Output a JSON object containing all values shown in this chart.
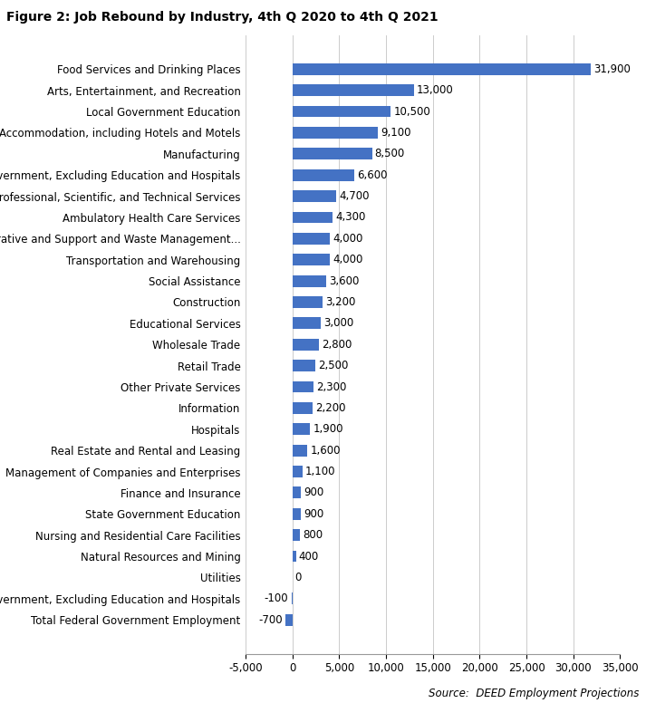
{
  "title": "Figure 2: Job Rebound by Industry, 4th Q 2020 to 4th Q 2021",
  "source": "Source:  DEED Employment Projections",
  "categories": [
    "Total Federal Government Employment",
    "State Government, Excluding Education and Hospitals",
    "Utilities",
    "Natural Resources and Mining",
    "Nursing and Residential Care Facilities",
    "State Government Education",
    "Finance and Insurance",
    "Management of Companies and Enterprises",
    "Real Estate and Rental and Leasing",
    "Hospitals",
    "Information",
    "Other Private Services",
    "Retail Trade",
    "Wholesale Trade",
    "Educational Services",
    "Construction",
    "Social Assistance",
    "Transportation and Warehousing",
    "Administrative and Support and Waste Management...",
    "Ambulatory Health Care Services",
    "Professional, Scientific, and Technical Services",
    "Local Government, Excluding Education and Hospitals",
    "Manufacturing",
    "Accommodation, including Hotels and Motels",
    "Local Government Education",
    "Arts, Entertainment, and Recreation",
    "Food Services and Drinking Places"
  ],
  "values": [
    -700,
    -100,
    0,
    400,
    800,
    900,
    900,
    1100,
    1600,
    1900,
    2200,
    2300,
    2500,
    2800,
    3000,
    3200,
    3600,
    4000,
    4000,
    4300,
    4700,
    6600,
    8500,
    9100,
    10500,
    13000,
    31900
  ],
  "bar_color": "#4472C4",
  "label_color": "#000000",
  "background_color": "#FFFFFF",
  "xlim": [
    -5000,
    35000
  ],
  "xticks": [
    -5000,
    0,
    5000,
    10000,
    15000,
    20000,
    25000,
    30000,
    35000
  ],
  "xtick_labels": [
    "-5,000",
    "0",
    "5,000",
    "10,000",
    "15,000",
    "20,000",
    "25,000",
    "30,000",
    "35,000"
  ],
  "title_fontsize": 10,
  "label_fontsize": 8.5,
  "tick_fontsize": 8.5,
  "source_fontsize": 8.5,
  "bar_height": 0.55
}
